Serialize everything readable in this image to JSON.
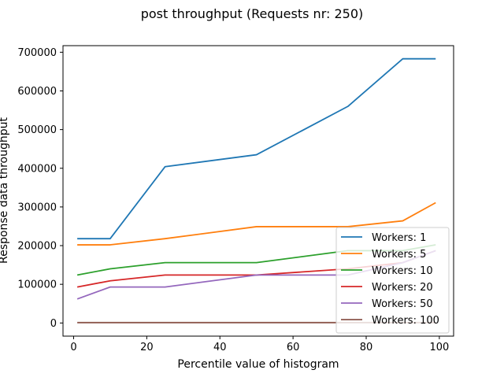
{
  "chart_data": {
    "type": "line",
    "title": "post throughput (Requests nr: 250)",
    "xlabel": "Percentile value of histogram",
    "ylabel": "Response data throughput",
    "xlim": [
      -2.9,
      103.9
    ],
    "ylim": [
      -34000,
      717000
    ],
    "grid": false,
    "legend_position": "lower-right",
    "x": [
      1,
      10,
      25,
      50,
      75,
      90,
      99
    ],
    "x_ticks": [
      0,
      20,
      40,
      60,
      80,
      100
    ],
    "x_tick_labels": [
      "0",
      "20",
      "40",
      "60",
      "80",
      "100"
    ],
    "y_ticks": [
      0,
      100000,
      200000,
      300000,
      400000,
      500000,
      600000,
      700000
    ],
    "y_tick_labels": [
      "0",
      "100000",
      "200000",
      "300000",
      "400000",
      "500000",
      "600000",
      "700000"
    ],
    "series": [
      {
        "name": "Workers: 1",
        "color": "#1f77b4",
        "values": [
          218000,
          218000,
          404000,
          435000,
          560000,
          683000,
          683000
        ]
      },
      {
        "name": "Workers: 5",
        "color": "#ff7f0e",
        "values": [
          202000,
          202000,
          218000,
          249000,
          249000,
          264000,
          311000
        ]
      },
      {
        "name": "Workers: 10",
        "color": "#2ca02c",
        "values": [
          124000,
          140000,
          156000,
          156000,
          187000,
          187000,
          202000
        ]
      },
      {
        "name": "Workers: 20",
        "color": "#d62728",
        "values": [
          93000,
          109000,
          124000,
          124000,
          140000,
          156000,
          187000
        ]
      },
      {
        "name": "Workers: 50",
        "color": "#9467bd",
        "values": [
          62000,
          93000,
          93000,
          124000,
          124000,
          156000,
          187000
        ]
      },
      {
        "name": "Workers: 100",
        "color": "#8c564b",
        "values": [
          1000,
          1000,
          1000,
          1000,
          1000,
          1000,
          1000
        ]
      }
    ]
  }
}
